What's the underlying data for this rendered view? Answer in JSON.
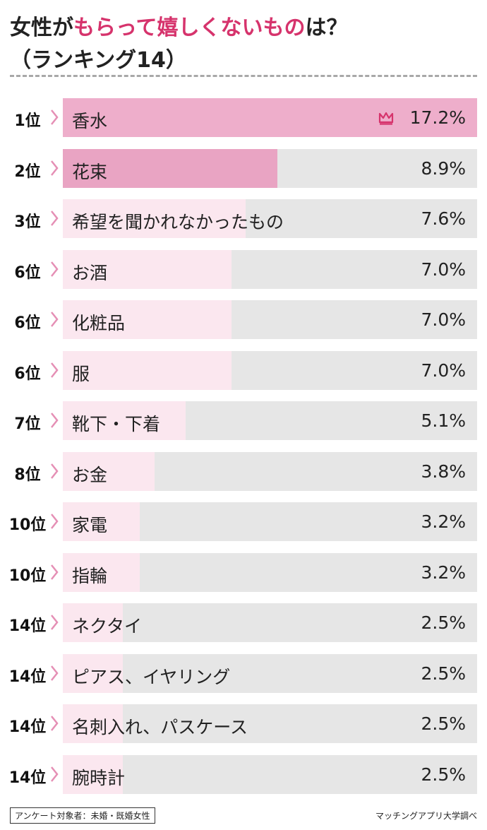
{
  "header": {
    "title_part1": "女性が",
    "title_accent": "もらって嬉しくないもの",
    "title_part2": "は？",
    "subtitle": "（ランキング14）"
  },
  "colors": {
    "accent": "#d6336c",
    "top_bar": "#eeaecb",
    "mid_bar": "#e9a4c3",
    "light_bar": "#fbe7ef",
    "track": "#e6e6e6",
    "chevron": "#e58fb5"
  },
  "chart_data": {
    "type": "bar",
    "orientation": "horizontal",
    "xlim": [
      0,
      17.2
    ],
    "categories": [
      "香水",
      "花束",
      "希望を聞かれなかったもの",
      "お酒",
      "化粧品",
      "服",
      "靴下・下着",
      "お金",
      "家電",
      "指輪",
      "ネクタイ",
      "ピアス、イヤリング",
      "名刺入れ、パスケース",
      "腕時計"
    ],
    "ranks": [
      "1位",
      "2位",
      "3位",
      "6位",
      "6位",
      "6位",
      "7位",
      "8位",
      "10位",
      "10位",
      "14位",
      "14位",
      "14位",
      "14位"
    ],
    "values": [
      17.2,
      8.9,
      7.6,
      7.0,
      7.0,
      7.0,
      5.1,
      3.8,
      3.2,
      3.2,
      2.5,
      2.5,
      2.5,
      2.5
    ],
    "value_labels": [
      "17.2%",
      "8.9%",
      "7.6%",
      "7.0%",
      "7.0%",
      "7.0%",
      "5.1%",
      "3.8%",
      "3.2%",
      "3.2%",
      "2.5%",
      "2.5%",
      "2.5%",
      "2.5%"
    ],
    "top_icon": "crown-icon"
  },
  "footer": {
    "note": "アンケート対象者：未婚・既婚女性",
    "source": "マッチングアプリ大学調べ"
  }
}
